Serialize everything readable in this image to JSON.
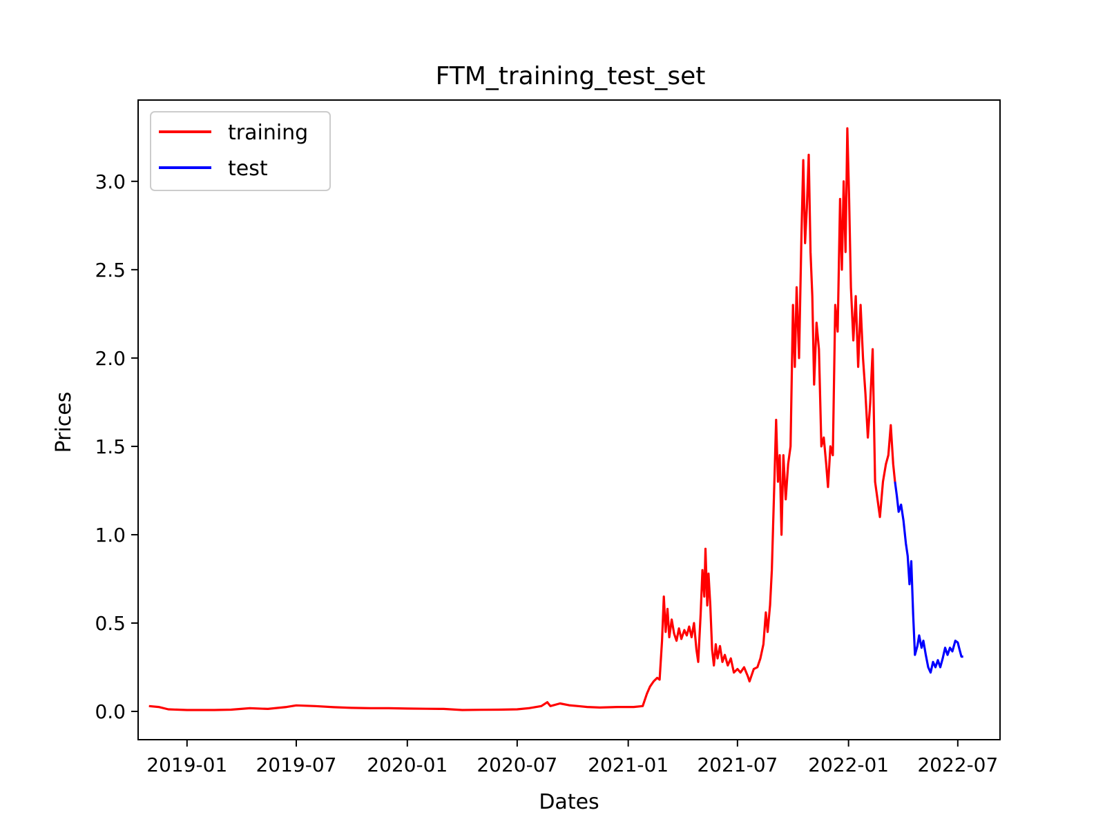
{
  "chart_data": {
    "type": "line",
    "title": "FTM_training_test_set",
    "xlabel": "Dates",
    "ylabel": "Prices",
    "x_range": [
      "2018-10-12",
      "2022-09-09"
    ],
    "ylim": [
      -0.16,
      3.46
    ],
    "x_ticks": [
      "2019-01",
      "2019-07",
      "2020-01",
      "2020-07",
      "2021-01",
      "2021-07",
      "2022-01",
      "2022-07"
    ],
    "y_ticks": [
      "0.0",
      "0.5",
      "1.0",
      "1.5",
      "2.0",
      "2.5",
      "3.0"
    ],
    "grid": false,
    "legend_position": "upper-left",
    "series": [
      {
        "name": "training",
        "color": "#ff0000",
        "points": [
          [
            "2018-10-30",
            0.03
          ],
          [
            "2018-11-15",
            0.025
          ],
          [
            "2018-12-01",
            0.012
          ],
          [
            "2019-01-01",
            0.008
          ],
          [
            "2019-02-15",
            0.008
          ],
          [
            "2019-03-15",
            0.01
          ],
          [
            "2019-04-15",
            0.018
          ],
          [
            "2019-05-15",
            0.014
          ],
          [
            "2019-06-15",
            0.025
          ],
          [
            "2019-07-01",
            0.034
          ],
          [
            "2019-08-01",
            0.03
          ],
          [
            "2019-09-01",
            0.024
          ],
          [
            "2019-10-01",
            0.02
          ],
          [
            "2019-11-01",
            0.018
          ],
          [
            "2019-12-01",
            0.018
          ],
          [
            "2020-01-01",
            0.016
          ],
          [
            "2020-02-01",
            0.015
          ],
          [
            "2020-03-01",
            0.014
          ],
          [
            "2020-04-01",
            0.008
          ],
          [
            "2020-05-01",
            0.009
          ],
          [
            "2020-06-01",
            0.01
          ],
          [
            "2020-07-01",
            0.012
          ],
          [
            "2020-07-20",
            0.018
          ],
          [
            "2020-08-10",
            0.03
          ],
          [
            "2020-08-20",
            0.052
          ],
          [
            "2020-08-25",
            0.03
          ],
          [
            "2020-09-10",
            0.045
          ],
          [
            "2020-09-25",
            0.035
          ],
          [
            "2020-10-10",
            0.03
          ],
          [
            "2020-10-25",
            0.025
          ],
          [
            "2020-11-15",
            0.022
          ],
          [
            "2020-12-15",
            0.025
          ],
          [
            "2021-01-10",
            0.025
          ],
          [
            "2021-01-25",
            0.03
          ],
          [
            "2021-02-01",
            0.1
          ],
          [
            "2021-02-06",
            0.14
          ],
          [
            "2021-02-12",
            0.17
          ],
          [
            "2021-02-18",
            0.19
          ],
          [
            "2021-02-22",
            0.18
          ],
          [
            "2021-02-26",
            0.4
          ],
          [
            "2021-03-01",
            0.65
          ],
          [
            "2021-03-04",
            0.45
          ],
          [
            "2021-03-07",
            0.58
          ],
          [
            "2021-03-10",
            0.42
          ],
          [
            "2021-03-14",
            0.52
          ],
          [
            "2021-03-18",
            0.44
          ],
          [
            "2021-03-22",
            0.4
          ],
          [
            "2021-03-26",
            0.47
          ],
          [
            "2021-03-30",
            0.41
          ],
          [
            "2021-04-04",
            0.46
          ],
          [
            "2021-04-08",
            0.43
          ],
          [
            "2021-04-12",
            0.48
          ],
          [
            "2021-04-16",
            0.42
          ],
          [
            "2021-04-20",
            0.5
          ],
          [
            "2021-04-24",
            0.35
          ],
          [
            "2021-04-27",
            0.28
          ],
          [
            "2021-05-01",
            0.55
          ],
          [
            "2021-05-04",
            0.8
          ],
          [
            "2021-05-07",
            0.65
          ],
          [
            "2021-05-09",
            0.92
          ],
          [
            "2021-05-12",
            0.6
          ],
          [
            "2021-05-14",
            0.78
          ],
          [
            "2021-05-17",
            0.6
          ],
          [
            "2021-05-20",
            0.35
          ],
          [
            "2021-05-23",
            0.26
          ],
          [
            "2021-05-26",
            0.38
          ],
          [
            "2021-05-29",
            0.3
          ],
          [
            "2021-06-02",
            0.37
          ],
          [
            "2021-06-06",
            0.28
          ],
          [
            "2021-06-10",
            0.32
          ],
          [
            "2021-06-15",
            0.26
          ],
          [
            "2021-06-20",
            0.3
          ],
          [
            "2021-06-25",
            0.22
          ],
          [
            "2021-07-01",
            0.24
          ],
          [
            "2021-07-06",
            0.22
          ],
          [
            "2021-07-12",
            0.25
          ],
          [
            "2021-07-18",
            0.2
          ],
          [
            "2021-07-21",
            0.17
          ],
          [
            "2021-07-28",
            0.24
          ],
          [
            "2021-08-03",
            0.25
          ],
          [
            "2021-08-08",
            0.3
          ],
          [
            "2021-08-13",
            0.38
          ],
          [
            "2021-08-17",
            0.56
          ],
          [
            "2021-08-20",
            0.45
          ],
          [
            "2021-08-24",
            0.6
          ],
          [
            "2021-08-27",
            0.8
          ],
          [
            "2021-09-01",
            1.4
          ],
          [
            "2021-09-03",
            1.65
          ],
          [
            "2021-09-06",
            1.3
          ],
          [
            "2021-09-09",
            1.45
          ],
          [
            "2021-09-12",
            1.0
          ],
          [
            "2021-09-15",
            1.45
          ],
          [
            "2021-09-19",
            1.2
          ],
          [
            "2021-09-23",
            1.4
          ],
          [
            "2021-09-27",
            1.5
          ],
          [
            "2021-10-01",
            2.3
          ],
          [
            "2021-10-04",
            1.95
          ],
          [
            "2021-10-07",
            2.4
          ],
          [
            "2021-10-11",
            2.0
          ],
          [
            "2021-10-15",
            2.7
          ],
          [
            "2021-10-18",
            3.12
          ],
          [
            "2021-10-21",
            2.65
          ],
          [
            "2021-10-24",
            2.85
          ],
          [
            "2021-10-27",
            3.15
          ],
          [
            "2021-10-30",
            2.6
          ],
          [
            "2021-11-02",
            2.35
          ],
          [
            "2021-11-05",
            1.85
          ],
          [
            "2021-11-09",
            2.2
          ],
          [
            "2021-11-13",
            2.05
          ],
          [
            "2021-11-17",
            1.5
          ],
          [
            "2021-11-21",
            1.55
          ],
          [
            "2021-11-25",
            1.4
          ],
          [
            "2021-11-28",
            1.27
          ],
          [
            "2021-12-02",
            1.5
          ],
          [
            "2021-12-06",
            1.45
          ],
          [
            "2021-12-10",
            2.3
          ],
          [
            "2021-12-14",
            2.15
          ],
          [
            "2021-12-18",
            2.9
          ],
          [
            "2021-12-21",
            2.5
          ],
          [
            "2021-12-24",
            3.0
          ],
          [
            "2021-12-27",
            2.6
          ],
          [
            "2021-12-30",
            3.3
          ],
          [
            "2022-01-02",
            2.9
          ],
          [
            "2022-01-05",
            2.4
          ],
          [
            "2022-01-09",
            2.1
          ],
          [
            "2022-01-13",
            2.35
          ],
          [
            "2022-01-17",
            1.95
          ],
          [
            "2022-01-21",
            2.3
          ],
          [
            "2022-01-25",
            2.0
          ],
          [
            "2022-01-29",
            1.8
          ],
          [
            "2022-02-02",
            1.55
          ],
          [
            "2022-02-06",
            1.75
          ],
          [
            "2022-02-10",
            2.05
          ],
          [
            "2022-02-14",
            1.3
          ],
          [
            "2022-02-18",
            1.2
          ],
          [
            "2022-02-22",
            1.1
          ],
          [
            "2022-02-27",
            1.3
          ],
          [
            "2022-03-04",
            1.4
          ],
          [
            "2022-03-08",
            1.45
          ],
          [
            "2022-03-12",
            1.62
          ],
          [
            "2022-03-16",
            1.4
          ],
          [
            "2022-03-19",
            1.3
          ]
        ]
      },
      {
        "name": "test",
        "color": "#0000ff",
        "points": [
          [
            "2022-03-19",
            1.3
          ],
          [
            "2022-03-22",
            1.22
          ],
          [
            "2022-03-25",
            1.13
          ],
          [
            "2022-03-29",
            1.17
          ],
          [
            "2022-04-02",
            1.08
          ],
          [
            "2022-04-06",
            0.95
          ],
          [
            "2022-04-09",
            0.88
          ],
          [
            "2022-04-12",
            0.72
          ],
          [
            "2022-04-15",
            0.85
          ],
          [
            "2022-04-18",
            0.55
          ],
          [
            "2022-04-21",
            0.32
          ],
          [
            "2022-04-25",
            0.37
          ],
          [
            "2022-04-28",
            0.43
          ],
          [
            "2022-05-02",
            0.36
          ],
          [
            "2022-05-05",
            0.4
          ],
          [
            "2022-05-09",
            0.32
          ],
          [
            "2022-05-13",
            0.25
          ],
          [
            "2022-05-17",
            0.22
          ],
          [
            "2022-05-21",
            0.28
          ],
          [
            "2022-05-25",
            0.25
          ],
          [
            "2022-05-29",
            0.29
          ],
          [
            "2022-06-02",
            0.25
          ],
          [
            "2022-06-06",
            0.3
          ],
          [
            "2022-06-10",
            0.36
          ],
          [
            "2022-06-14",
            0.32
          ],
          [
            "2022-06-18",
            0.36
          ],
          [
            "2022-06-22",
            0.34
          ],
          [
            "2022-06-27",
            0.4
          ],
          [
            "2022-07-01",
            0.39
          ],
          [
            "2022-07-04",
            0.35
          ],
          [
            "2022-07-07",
            0.31
          ],
          [
            "2022-07-10",
            0.31
          ]
        ]
      }
    ]
  }
}
